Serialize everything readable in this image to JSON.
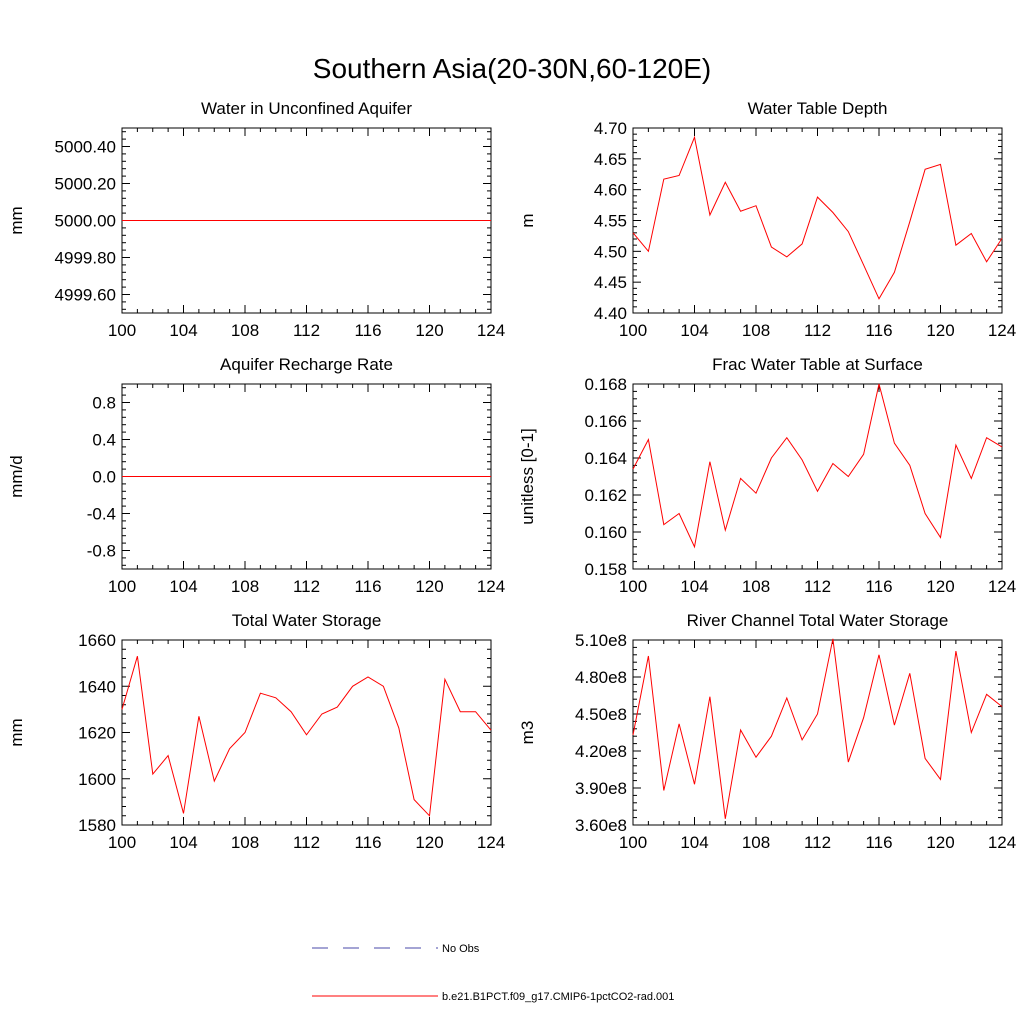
{
  "figure_title": "Southern Asia(20-30N,60-120E)",
  "legend": {
    "items": [
      {
        "label": "No Obs",
        "color": "#4a4aaa",
        "dash": true
      },
      {
        "label": "b.e21.B1PCT.f09_g17.CMIP6-1pctCO2-rad.001",
        "color": "#ff0000",
        "dash": false
      }
    ]
  },
  "chart_data": [
    {
      "type": "line",
      "title": "Water in Unconfined Aquifer",
      "ylabel": "mm",
      "xlim": [
        100,
        124
      ],
      "xticks": [
        100,
        104,
        108,
        112,
        116,
        120,
        124
      ],
      "ylim": [
        4999.5,
        5000.5
      ],
      "yticks": [
        4999.6,
        4999.8,
        5000.0,
        5000.2,
        5000.4
      ],
      "ytick_labels": [
        "4999.60",
        "4999.80",
        "5000.00",
        "5000.20",
        "5000.40"
      ],
      "series": [
        {
          "color": "#ff0000",
          "x": [
            100,
            101,
            102,
            103,
            104,
            105,
            106,
            107,
            108,
            109,
            110,
            111,
            112,
            113,
            114,
            115,
            116,
            117,
            118,
            119,
            120,
            121,
            122,
            123,
            124
          ],
          "values": [
            5000,
            5000,
            5000,
            5000,
            5000,
            5000,
            5000,
            5000,
            5000,
            5000,
            5000,
            5000,
            5000,
            5000,
            5000,
            5000,
            5000,
            5000,
            5000,
            5000,
            5000,
            5000,
            5000,
            5000,
            5000
          ]
        }
      ]
    },
    {
      "type": "line",
      "title": "Water Table Depth",
      "ylabel": "m",
      "xlim": [
        100,
        124
      ],
      "xticks": [
        100,
        104,
        108,
        112,
        116,
        120,
        124
      ],
      "ylim": [
        4.4,
        4.7
      ],
      "yticks": [
        4.4,
        4.45,
        4.5,
        4.55,
        4.6,
        4.65,
        4.7
      ],
      "ytick_labels": [
        "4.40",
        "4.45",
        "4.50",
        "4.55",
        "4.60",
        "4.65",
        "4.70"
      ],
      "series": [
        {
          "color": "#ff0000",
          "x": [
            100,
            101,
            102,
            103,
            104,
            105,
            106,
            107,
            108,
            109,
            110,
            111,
            112,
            113,
            114,
            115,
            116,
            117,
            118,
            119,
            120,
            121,
            122,
            123,
            124
          ],
          "values": [
            4.53,
            4.5,
            4.617,
            4.623,
            4.685,
            4.559,
            4.612,
            4.565,
            4.574,
            4.507,
            4.491,
            4.512,
            4.588,
            4.563,
            4.532,
            4.478,
            4.423,
            4.466,
            4.548,
            4.633,
            4.641,
            4.51,
            4.529,
            4.483,
            4.521
          ]
        }
      ]
    },
    {
      "type": "line",
      "title": "Aquifer Recharge Rate",
      "ylabel": "mm/d",
      "xlim": [
        100,
        124
      ],
      "xticks": [
        100,
        104,
        108,
        112,
        116,
        120,
        124
      ],
      "ylim": [
        -1.0,
        1.0
      ],
      "yticks": [
        -0.8,
        -0.4,
        0.0,
        0.4,
        0.8
      ],
      "ytick_labels": [
        "-0.8",
        "-0.4",
        "0.0",
        "0.4",
        "0.8"
      ],
      "series": [
        {
          "color": "#ff0000",
          "x": [
            100,
            101,
            102,
            103,
            104,
            105,
            106,
            107,
            108,
            109,
            110,
            111,
            112,
            113,
            114,
            115,
            116,
            117,
            118,
            119,
            120,
            121,
            122,
            123,
            124
          ],
          "values": [
            0,
            0,
            0,
            0,
            0,
            0,
            0,
            0,
            0,
            0,
            0,
            0,
            0,
            0,
            0,
            0,
            0,
            0,
            0,
            0,
            0,
            0,
            0,
            0,
            0
          ]
        }
      ]
    },
    {
      "type": "line",
      "title": "Frac Water Table at Surface",
      "ylabel": "unitless [0-1]",
      "xlim": [
        100,
        124
      ],
      "xticks": [
        100,
        104,
        108,
        112,
        116,
        120,
        124
      ],
      "ylim": [
        0.158,
        0.168
      ],
      "yticks": [
        0.158,
        0.16,
        0.162,
        0.164,
        0.166,
        0.168
      ],
      "ytick_labels": [
        "0.158",
        "0.160",
        "0.162",
        "0.164",
        "0.166",
        "0.168"
      ],
      "series": [
        {
          "color": "#ff0000",
          "x": [
            100,
            101,
            102,
            103,
            104,
            105,
            106,
            107,
            108,
            109,
            110,
            111,
            112,
            113,
            114,
            115,
            116,
            117,
            118,
            119,
            120,
            121,
            122,
            123,
            124
          ],
          "values": [
            0.1634,
            0.165,
            0.1604,
            0.161,
            0.1592,
            0.1638,
            0.1601,
            0.1629,
            0.1621,
            0.164,
            0.1651,
            0.1639,
            0.1622,
            0.1637,
            0.163,
            0.1642,
            0.168,
            0.1648,
            0.1636,
            0.161,
            0.1597,
            0.1647,
            0.1629,
            0.1651,
            0.1646
          ]
        }
      ]
    },
    {
      "type": "line",
      "title": "Total Water Storage",
      "ylabel": "mm",
      "xlim": [
        100,
        124
      ],
      "xticks": [
        100,
        104,
        108,
        112,
        116,
        120,
        124
      ],
      "ylim": [
        1580,
        1660
      ],
      "yticks": [
        1580,
        1600,
        1620,
        1640,
        1660
      ],
      "ytick_labels": [
        "1580",
        "1600",
        "1620",
        "1640",
        "1660"
      ],
      "series": [
        {
          "color": "#ff0000",
          "x": [
            100,
            101,
            102,
            103,
            104,
            105,
            106,
            107,
            108,
            109,
            110,
            111,
            112,
            113,
            114,
            115,
            116,
            117,
            118,
            119,
            120,
            121,
            122,
            123,
            124
          ],
          "values": [
            1630,
            1653,
            1602,
            1610,
            1585,
            1627,
            1599,
            1613,
            1620,
            1637,
            1635,
            1629,
            1619,
            1628,
            1631,
            1640,
            1644,
            1640,
            1622,
            1591,
            1584,
            1643,
            1629,
            1629,
            1621
          ]
        }
      ]
    },
    {
      "type": "line",
      "title": "River Channel Total Water Storage",
      "ylabel": "m3",
      "xlim": [
        100,
        124
      ],
      "xticks": [
        100,
        104,
        108,
        112,
        116,
        120,
        124
      ],
      "ylim": [
        360000000,
        510000000
      ],
      "yticks": [
        360000000,
        390000000,
        420000000,
        450000000,
        480000000,
        510000000
      ],
      "ytick_labels": [
        "3.60e8",
        "3.90e8",
        "4.20e8",
        "4.50e8",
        "4.80e8",
        "5.10e8"
      ],
      "series": [
        {
          "color": "#ff0000",
          "x": [
            100,
            101,
            102,
            103,
            104,
            105,
            106,
            107,
            108,
            109,
            110,
            111,
            112,
            113,
            114,
            115,
            116,
            117,
            118,
            119,
            120,
            121,
            122,
            123,
            124
          ],
          "values": [
            433000000,
            497000000,
            388000000,
            442000000,
            393000000,
            464000000,
            365000000,
            437000000,
            415000000,
            432000000,
            463000000,
            429000000,
            450000000,
            511000000,
            411000000,
            447000000,
            498000000,
            441000000,
            483000000,
            414000000,
            397000000,
            501000000,
            435000000,
            466000000,
            456000000
          ]
        }
      ]
    }
  ]
}
